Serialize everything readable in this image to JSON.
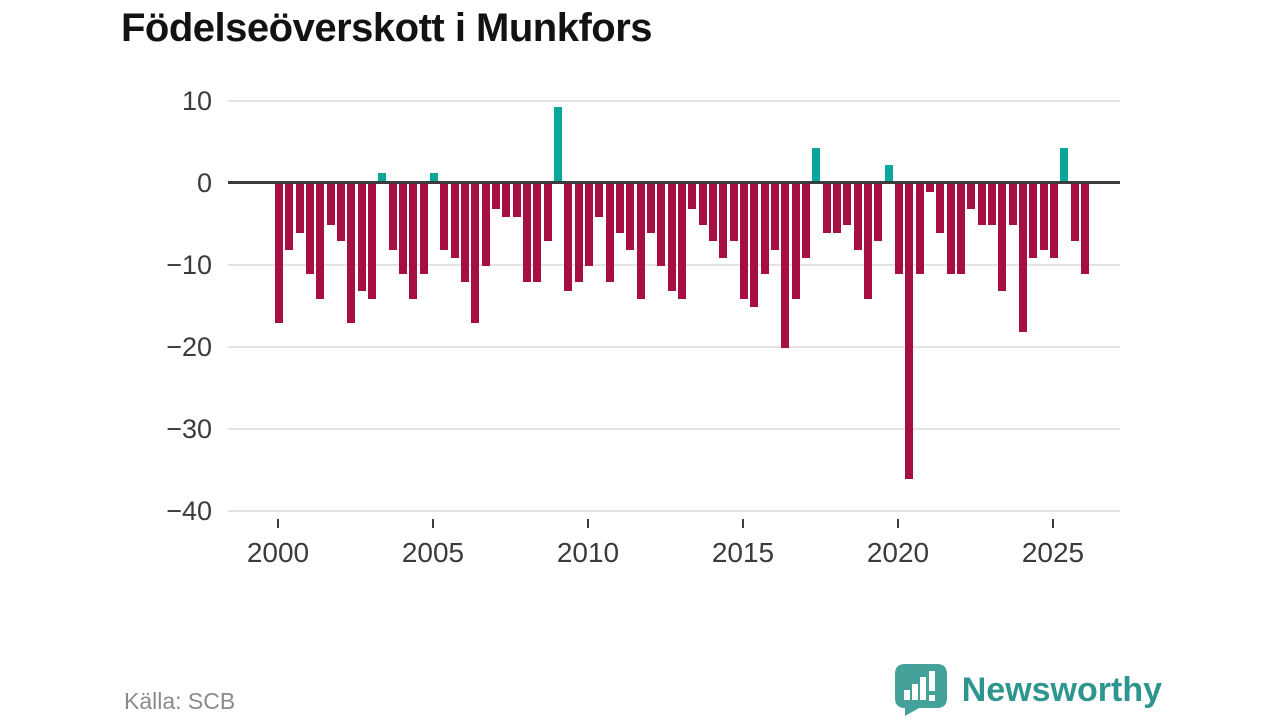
{
  "header": {
    "title": "Födelseöverskott i Munkfors"
  },
  "footer": {
    "source": "Källa: SCB",
    "brand": "Newsworthy"
  },
  "colors": {
    "negative_bar": "#a50f44",
    "positive_bar": "#0ba79d",
    "zero_axis": "#3b3b3b",
    "gridline": "#e4e4e4",
    "logo_teal": "#45a29a",
    "brand_text": "#2f968f"
  },
  "chart_data": {
    "type": "bar",
    "title": "Födelseöverskott i Munkfors",
    "xlabel": "",
    "ylabel": "",
    "ylim": [
      -40,
      10
    ],
    "grid": true,
    "y_ticks": [
      {
        "value": 10,
        "label": "10"
      },
      {
        "value": 0,
        "label": "0"
      },
      {
        "value": -10,
        "label": "−10"
      },
      {
        "value": -20,
        "label": "−20"
      },
      {
        "value": -30,
        "label": "−30"
      },
      {
        "value": -40,
        "label": "−40"
      }
    ],
    "x_ticks": [
      {
        "year": 2000,
        "label": "2000"
      },
      {
        "year": 2005,
        "label": "2005"
      },
      {
        "year": 2010,
        "label": "2010"
      },
      {
        "year": 2015,
        "label": "2015"
      },
      {
        "year": 2020,
        "label": "2020"
      },
      {
        "year": 2025,
        "label": "2025"
      }
    ],
    "periods": [
      "2000 T1",
      "2000 T2",
      "2000 T3",
      "2001 T1",
      "2001 T2",
      "2001 T3",
      "2002 T1",
      "2002 T2",
      "2002 T3",
      "2003 T1",
      "2003 T2",
      "2003 T3",
      "2004 T1",
      "2004 T2",
      "2004 T3",
      "2005 T1",
      "2005 T2",
      "2005 T3",
      "2006 T1",
      "2006 T2",
      "2006 T3",
      "2007 T1",
      "2007 T2",
      "2007 T3",
      "2008 T1",
      "2008 T2",
      "2008 T3",
      "2009 T1",
      "2009 T2",
      "2009 T3",
      "2010 T1",
      "2010 T2",
      "2010 T3",
      "2011 T1",
      "2011 T2",
      "2011 T3",
      "2012 T1",
      "2012 T2",
      "2012 T3",
      "2013 T1",
      "2013 T2",
      "2013 T3",
      "2014 T1",
      "2014 T2",
      "2014 T3",
      "2015 T1",
      "2015 T2",
      "2015 T3",
      "2016 T1",
      "2016 T2",
      "2016 T3",
      "2017 T1",
      "2017 T2",
      "2017 T3",
      "2018 T1",
      "2018 T2",
      "2018 T3",
      "2019 T1",
      "2019 T2",
      "2019 T3",
      "2020 T1",
      "2020 T2",
      "2020 T3",
      "2021 T1",
      "2021 T2",
      "2021 T3",
      "2022 T1",
      "2022 T2",
      "2022 T3",
      "2023 T1",
      "2023 T2",
      "2023 T3",
      "2024 T1",
      "2024 T2",
      "2024 T3",
      "2025 T1",
      "2025 T2",
      "2025 T3",
      "2026 T1"
    ],
    "values": [
      -17,
      -8,
      -6,
      -11,
      -14,
      -5,
      -7,
      -17,
      -13,
      -14,
      1,
      -8,
      -11,
      -14,
      -11,
      1,
      -8,
      -9,
      -12,
      -17,
      -10,
      -3,
      -4,
      -4,
      -12,
      -12,
      -7,
      9,
      -13,
      -12,
      -10,
      -4,
      -12,
      -6,
      -8,
      -14,
      -6,
      -10,
      -13,
      -14,
      -3,
      -5,
      -7,
      -9,
      -7,
      -14,
      -15,
      -11,
      -8,
      -20,
      -14,
      -9,
      4,
      -6,
      -6,
      -5,
      -8,
      -14,
      -7,
      2,
      -11,
      -36,
      -11,
      -1,
      -6,
      -11,
      -11,
      -3,
      -5,
      -5,
      -13,
      -5,
      -18,
      -9,
      -8,
      -9,
      4,
      -7,
      -11
    ],
    "legend": null
  }
}
